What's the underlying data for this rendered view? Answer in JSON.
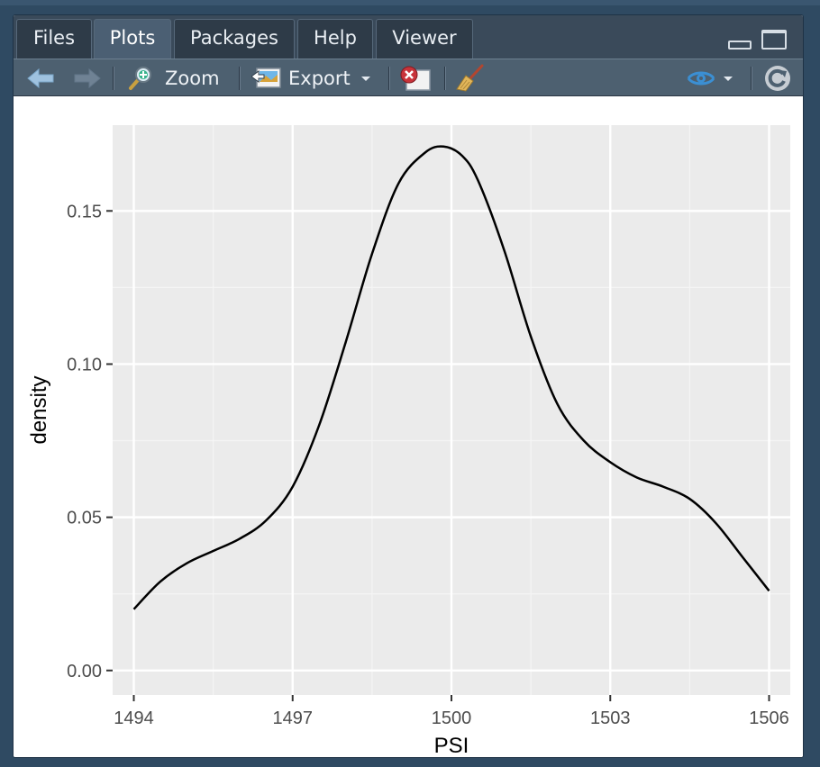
{
  "tabs": [
    {
      "label": "Files",
      "active": false
    },
    {
      "label": "Plots",
      "active": true
    },
    {
      "label": "Packages",
      "active": false
    },
    {
      "label": "Help",
      "active": false
    },
    {
      "label": "Viewer",
      "active": false
    }
  ],
  "toolbar": {
    "zoom_label": "Zoom",
    "export_label": "Export"
  },
  "icons": {
    "back": "arrow-left-icon",
    "forward": "arrow-right-icon",
    "zoom": "magnifier-plus-icon",
    "export": "export-image-icon",
    "remove": "remove-plot-icon",
    "clear": "broom-icon",
    "publish": "publish-icon",
    "refresh": "refresh-icon"
  },
  "colors": {
    "panel_bg": "#ebebeb",
    "grid_major": "#ffffff",
    "line": "#000000",
    "accent_publish": "#3b8fd3"
  },
  "chart_data": {
    "type": "line",
    "title": "",
    "xlabel": "PSI",
    "ylabel": "density",
    "xlim": [
      1493.6,
      1506.4
    ],
    "ylim": [
      -0.008,
      0.178
    ],
    "x_ticks": [
      1494,
      1497,
      1500,
      1503,
      1506
    ],
    "y_ticks": [
      0.0,
      0.05,
      0.1,
      0.15
    ],
    "y_tick_labels": [
      "0.00",
      "0.05",
      "0.10",
      "0.15"
    ],
    "x_tick_labels": [
      "1494",
      "1497",
      "1500",
      "1503",
      "1506"
    ],
    "grid": true,
    "series": [
      {
        "x": [
          1494.0,
          1494.5,
          1495.0,
          1495.5,
          1496.0,
          1496.5,
          1497.0,
          1497.5,
          1498.0,
          1498.5,
          1499.0,
          1499.5,
          1499.85,
          1500.2,
          1500.5,
          1501.0,
          1501.5,
          1502.0,
          1502.5,
          1503.0,
          1503.5,
          1504.0,
          1504.5,
          1505.0,
          1505.5,
          1506.0
        ],
        "y": [
          0.02,
          0.029,
          0.035,
          0.039,
          0.043,
          0.049,
          0.06,
          0.08,
          0.107,
          0.136,
          0.159,
          0.169,
          0.171,
          0.168,
          0.16,
          0.137,
          0.109,
          0.087,
          0.075,
          0.068,
          0.063,
          0.06,
          0.056,
          0.048,
          0.037,
          0.026
        ]
      }
    ]
  }
}
